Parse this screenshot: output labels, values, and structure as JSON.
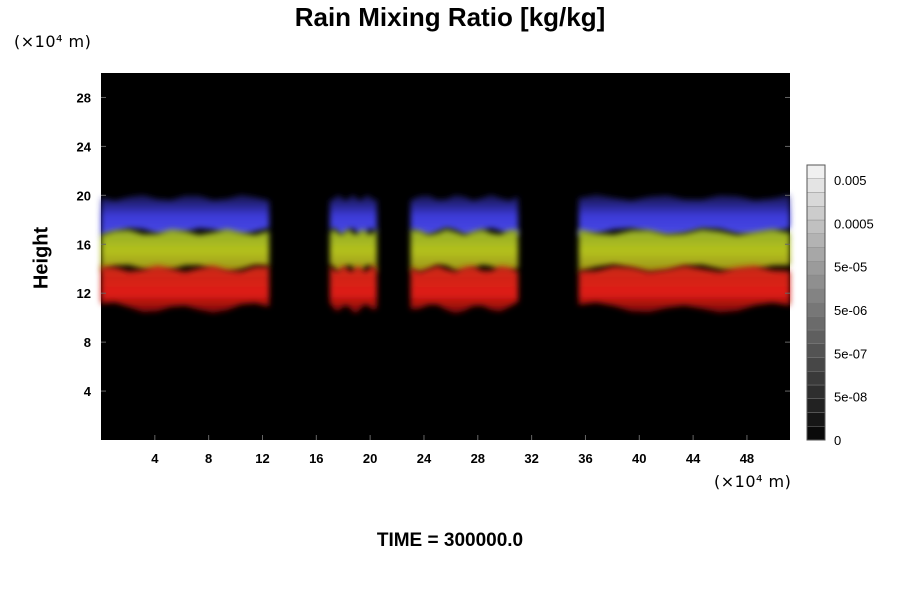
{
  "chart_data": {
    "type": "heatmap",
    "title": "Rain Mixing Ratio [kg/kg]",
    "ylabel": "Height",
    "xlabel": "",
    "x_unit": "(×10⁴ m)",
    "y_unit": "(×10⁴ m)",
    "x_ticks": [
      4,
      8,
      12,
      16,
      20,
      24,
      28,
      32,
      36,
      40,
      44,
      48
    ],
    "y_ticks": [
      4,
      8,
      12,
      16,
      20,
      24,
      28
    ],
    "xlim": [
      0,
      51.2
    ],
    "ylim": [
      0,
      30
    ],
    "background_color": "#000000",
    "colorbar": {
      "labels": [
        "0.005",
        "0.0005",
        "5e-05",
        "5e-06",
        "5e-07",
        "5e-08",
        "0"
      ]
    },
    "layers": [
      {
        "name": "blue",
        "color": "#3c3ad8",
        "y_range": [
          17,
          19.8
        ]
      },
      {
        "name": "green-yellow",
        "color": "#a6b41e",
        "y_range": [
          14,
          17
        ]
      },
      {
        "name": "red",
        "color": "#d81a16",
        "y_range": [
          11,
          14
        ]
      }
    ],
    "gaps_x": [
      [
        12.5,
        17
      ],
      [
        20.5,
        23
      ],
      [
        31,
        35.5
      ]
    ]
  },
  "footer": {
    "time_label": "TIME = 300000.0"
  }
}
